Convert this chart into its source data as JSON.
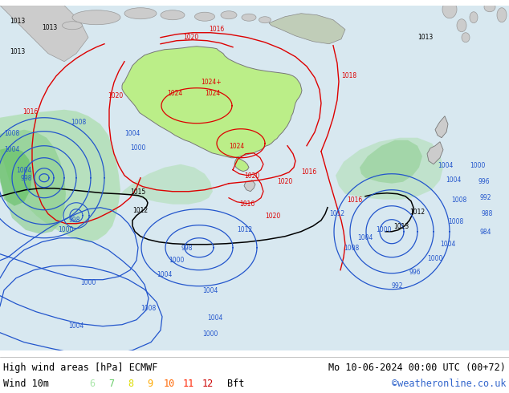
{
  "title_left": "High wind areas [hPa] ECMWF",
  "title_right": "Mo 10-06-2024 00:00 UTC (00+72)",
  "wind_label": "Wind 10m",
  "bft_label": "Bft",
  "copyright": "©weatheronline.co.uk",
  "bft_numbers": [
    "6",
    "7",
    "8",
    "9",
    "10",
    "11",
    "12"
  ],
  "bft_colors": [
    "#aae6aa",
    "#66cc66",
    "#dddd00",
    "#ffaa00",
    "#ff6600",
    "#ff2200",
    "#cc0000"
  ],
  "text_color": "#000000",
  "copyright_color": "#3366cc",
  "fig_width": 6.34,
  "fig_height": 4.9,
  "dpi": 100,
  "ocean_color": "#d8e8f0",
  "aus_color": "#bbee88",
  "land_gray": "#c8c8c8",
  "contour_red": "#dd0000",
  "contour_blue": "#2255cc",
  "contour_black": "#000000",
  "wind_green1": "#aaddaa",
  "wind_green2": "#88cc88",
  "wind_green3": "#55bb55",
  "wind_blue1": "#aaccdd",
  "wind_blue2": "#88bbcc"
}
